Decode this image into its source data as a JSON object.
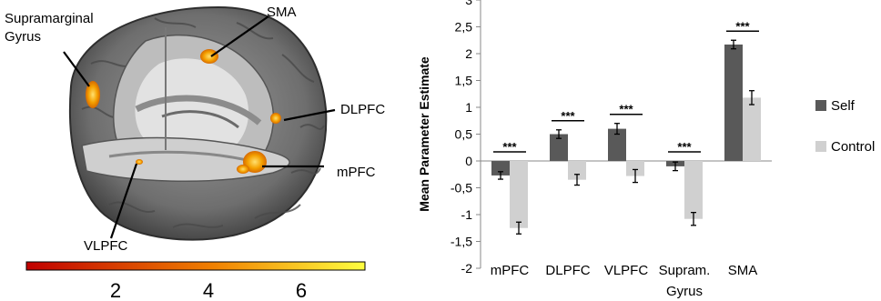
{
  "brain_panel": {
    "region_labels": {
      "supramarginal": "Supramarginal\nGyrus",
      "sma": "SMA",
      "dlpfc": "DLPFC",
      "mpfc": "mPFC",
      "vlpfc": "VLPFC"
    },
    "colorbar": {
      "ticks": [
        "2",
        "4",
        "6"
      ],
      "start_color": "#c00000",
      "mid_color": "#f08000",
      "end_color": "#ffff40"
    }
  },
  "chart_data": {
    "type": "bar",
    "ylabel": "Mean Parameter Estimate",
    "ylim": [
      -2,
      3
    ],
    "yticks": [
      "-2",
      "-1,5",
      "-1",
      "-0,5",
      "0",
      "0,5",
      "1",
      "1,5",
      "2",
      "2,5",
      "3"
    ],
    "categories": [
      "mPFC",
      "DLPFC",
      "VLPFC",
      "Supram.\nGyrus",
      "SMA"
    ],
    "series": [
      {
        "name": "Self",
        "color": "#595959",
        "values": [
          -0.27,
          0.5,
          0.6,
          -0.1,
          2.17
        ],
        "errors": [
          0.07,
          0.08,
          0.1,
          0.08,
          0.08
        ]
      },
      {
        "name": "Control",
        "color": "#d0d0d0",
        "values": [
          -1.25,
          -0.35,
          -0.28,
          -1.08,
          1.18
        ],
        "errors": [
          0.11,
          0.1,
          0.12,
          0.12,
          0.13
        ]
      }
    ],
    "significance": [
      "***",
      "***",
      "***",
      "***",
      "***"
    ],
    "legend_position": "right"
  }
}
